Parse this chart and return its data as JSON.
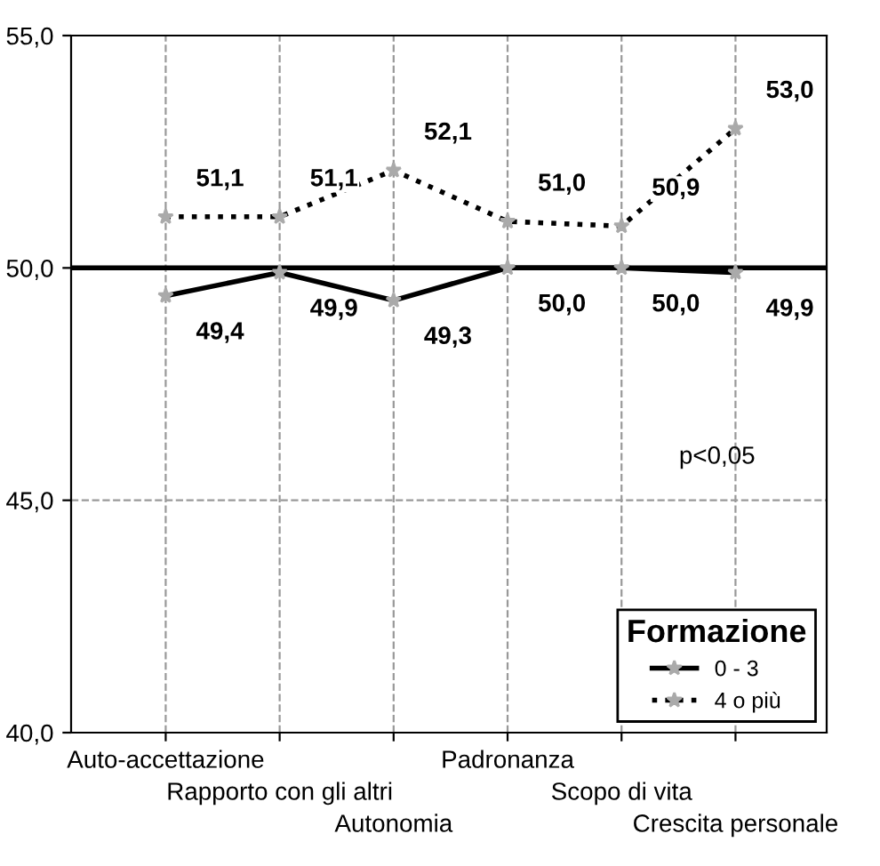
{
  "chart_data": {
    "type": "line",
    "categories": [
      "Auto-accettazione",
      "Rapporto con gli altri",
      "Autonomia",
      "Padronanza",
      "Scopo di vita",
      "Crescita personale"
    ],
    "series": [
      {
        "name": "0 - 3",
        "color": "#000000",
        "line_style": "solid",
        "values": [
          49.4,
          49.9,
          49.3,
          50.0,
          50.0,
          49.9
        ],
        "value_labels": [
          "49,4",
          "49,9",
          "49,3",
          "50,0",
          "50,0",
          "49,9"
        ]
      },
      {
        "name": "4 o più",
        "color": "#000000",
        "line_style": "dotted",
        "values": [
          51.1,
          51.1,
          52.1,
          51.0,
          50.9,
          53.0
        ],
        "value_labels": [
          "51,1",
          "51,1",
          "52,1",
          "51,0",
          "50,9",
          "53,0"
        ]
      }
    ],
    "ylim": [
      40,
      55
    ],
    "yticks": [
      {
        "value": 40,
        "label": "40,0"
      },
      {
        "value": 45,
        "label": "45,0"
      },
      {
        "value": 50,
        "label": "50,0"
      },
      {
        "value": 55,
        "label": "55,0"
      }
    ],
    "ref_lines": [
      {
        "axis": "y",
        "value": 50,
        "color": "#000000"
      }
    ],
    "grid": true,
    "legend": "bottom right",
    "legend_title": "Formazione",
    "marker": "star",
    "annotations": [
      "p<0,05"
    ]
  }
}
